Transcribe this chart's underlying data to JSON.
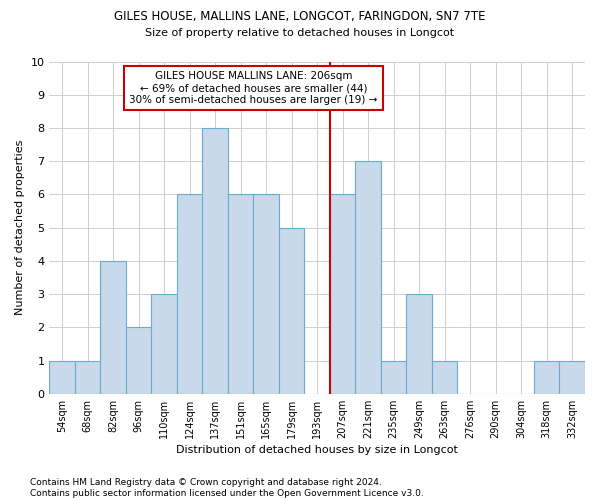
{
  "title1": "GILES HOUSE, MALLINS LANE, LONGCOT, FARINGDON, SN7 7TE",
  "title2": "Size of property relative to detached houses in Longcot",
  "xlabel": "Distribution of detached houses by size in Longcot",
  "ylabel": "Number of detached properties",
  "categories": [
    "54sqm",
    "68sqm",
    "82sqm",
    "96sqm",
    "110sqm",
    "124sqm",
    "137sqm",
    "151sqm",
    "165sqm",
    "179sqm",
    "193sqm",
    "207sqm",
    "221sqm",
    "235sqm",
    "249sqm",
    "263sqm",
    "276sqm",
    "290sqm",
    "304sqm",
    "318sqm",
    "332sqm"
  ],
  "values": [
    1,
    1,
    4,
    2,
    3,
    6,
    8,
    6,
    6,
    5,
    0,
    6,
    7,
    1,
    3,
    1,
    0,
    0,
    0,
    1,
    1
  ],
  "bar_color": "#c8d9ec",
  "bar_edge_color": "#6aabd2",
  "grid_color": "#c8c8c8",
  "vline_x_index": 11,
  "vline_color": "#cc0000",
  "annotation_text": "GILES HOUSE MALLINS LANE: 206sqm\n← 69% of detached houses are smaller (44)\n30% of semi-detached houses are larger (19) →",
  "annotation_box_color": "#cc0000",
  "ylim": [
    0,
    10
  ],
  "yticks": [
    0,
    1,
    2,
    3,
    4,
    5,
    6,
    7,
    8,
    9,
    10
  ],
  "footnote": "Contains HM Land Registry data © Crown copyright and database right 2024.\nContains public sector information licensed under the Open Government Licence v3.0.",
  "bg_color": "#ffffff",
  "title1_fontsize": 8.5,
  "title2_fontsize": 8,
  "tick_fontsize": 7,
  "ylabel_fontsize": 8,
  "xlabel_fontsize": 8,
  "ann_fontsize": 7.5,
  "footnote_fontsize": 6.5
}
